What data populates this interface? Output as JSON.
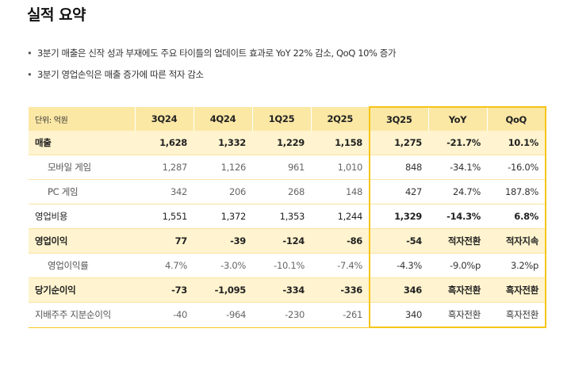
{
  "title": "실적 요약",
  "bullets": [
    "3분기 매출은 신작 성과 부재에도 주요 타이틀의 업데이트 효과로 YoY 22% 감소, QoQ 10% 증가",
    "3분기 영업손익은 매출 증가에 따른 적자 감소"
  ],
  "table": {
    "unit_label": "단위: 억원",
    "columns": [
      "3Q24",
      "4Q24",
      "1Q25",
      "2Q25",
      "3Q25",
      "YoY",
      "QoQ"
    ],
    "rows": [
      {
        "label": "매출",
        "values": [
          "1,628",
          "1,332",
          "1,229",
          "1,158",
          "1,275",
          "-21.7%",
          "10.1%"
        ]
      },
      {
        "label": "모바일 게임",
        "values": [
          "1,287",
          "1,126",
          "961",
          "1,010",
          "848",
          "-34.1%",
          "-16.0%"
        ]
      },
      {
        "label": "PC 게임",
        "values": [
          "342",
          "206",
          "268",
          "148",
          "427",
          "24.7%",
          "187.8%"
        ]
      },
      {
        "label": "영업비용",
        "values": [
          "1,551",
          "1,372",
          "1,353",
          "1,244",
          "1,329",
          "-14.3%",
          "6.8%"
        ]
      },
      {
        "label": "영업이익",
        "values": [
          "77",
          "-39",
          "-124",
          "-86",
          "-54",
          "적자전환",
          "적자지속"
        ]
      },
      {
        "label": "영업이익률",
        "values": [
          "4.7%",
          "-3.0%",
          "-10.1%",
          "-7.4%",
          "-4.3%",
          "-9.0%p",
          "3.2%p"
        ]
      },
      {
        "label": "당기순이익",
        "values": [
          "-73",
          "-1,095",
          "-334",
          "-336",
          "346",
          "흑자전환",
          "흑자전환"
        ]
      },
      {
        "label": "지배주주 지분순이익",
        "values": [
          "-40",
          "-964",
          "-230",
          "-261",
          "340",
          "흑자전환",
          "흑자전환"
        ]
      }
    ]
  },
  "colors": {
    "accent": "#f5c518",
    "header_bg": "#fce8a5",
    "highlight_row_bg": "#fff4cf"
  }
}
